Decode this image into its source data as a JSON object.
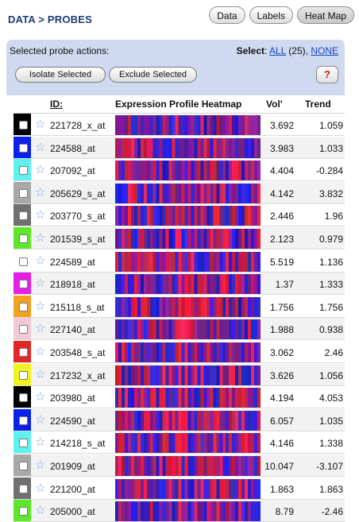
{
  "header": {
    "title": "DATA > PROBES",
    "tabs": [
      {
        "label": "Data",
        "active": false
      },
      {
        "label": "Labels",
        "active": false
      },
      {
        "label": "Heat Map",
        "active": true
      }
    ]
  },
  "actions": {
    "label": "Selected probe actions:",
    "select_prefix": "Select",
    "select_all": "ALL",
    "select_count": "(25),",
    "select_none": "NONE",
    "isolate_label": "Isolate Selected",
    "exclude_label": "Exclude Selected",
    "help_label": "?"
  },
  "columns": {
    "id": "ID:",
    "heatmap": "Expression Profile Heatmap",
    "vol": "Vol'",
    "trend": "Trend"
  },
  "probes": [
    {
      "id": "221728_x_at",
      "color": "#000000",
      "vol": "3.692",
      "trend": "1.059"
    },
    {
      "id": "224588_at",
      "color": "#0a22e8",
      "vol": "3.983",
      "trend": "1.033"
    },
    {
      "id": "207092_at",
      "color": "#5ef2ef",
      "vol": "4.404",
      "trend": "-0.284"
    },
    {
      "id": "205629_s_at",
      "color": "#a8a8a8",
      "vol": "4.142",
      "trend": "3.832"
    },
    {
      "id": "203770_s_at",
      "color": "#707070",
      "vol": "2.446",
      "trend": "1.96"
    },
    {
      "id": "201539_s_at",
      "color": "#5ce828",
      "vol": "2.123",
      "trend": "0.979"
    },
    {
      "id": "224589_at",
      "color": "#ffffff",
      "vol": "5.519",
      "trend": "1.136"
    },
    {
      "id": "218918_at",
      "color": "#e61ee6",
      "vol": "1.37",
      "trend": "1.333"
    },
    {
      "id": "215118_s_at",
      "color": "#f2a020",
      "vol": "1.756",
      "trend": "1.756"
    },
    {
      "id": "227140_at",
      "color": "#f2c8d8",
      "vol": "1.988",
      "trend": "0.938"
    },
    {
      "id": "203548_s_at",
      "color": "#e22626",
      "vol": "3.062",
      "trend": "2.46"
    },
    {
      "id": "217232_x_at",
      "color": "#f2f21e",
      "vol": "3.626",
      "trend": "1.056"
    },
    {
      "id": "203980_at",
      "color": "#000000",
      "vol": "4.194",
      "trend": "4.053"
    },
    {
      "id": "224590_at",
      "color": "#0a22e8",
      "vol": "6.057",
      "trend": "1.035"
    },
    {
      "id": "214218_s_at",
      "color": "#5ef2ef",
      "vol": "4.146",
      "trend": "1.338"
    },
    {
      "id": "201909_at",
      "color": "#a8a8a8",
      "vol": "10.047",
      "trend": "-3.107"
    },
    {
      "id": "221200_at",
      "color": "#707070",
      "vol": "1.863",
      "trend": "1.863"
    },
    {
      "id": "205000_at",
      "color": "#5ce828",
      "vol": "8.79",
      "trend": "-2.46"
    }
  ]
}
